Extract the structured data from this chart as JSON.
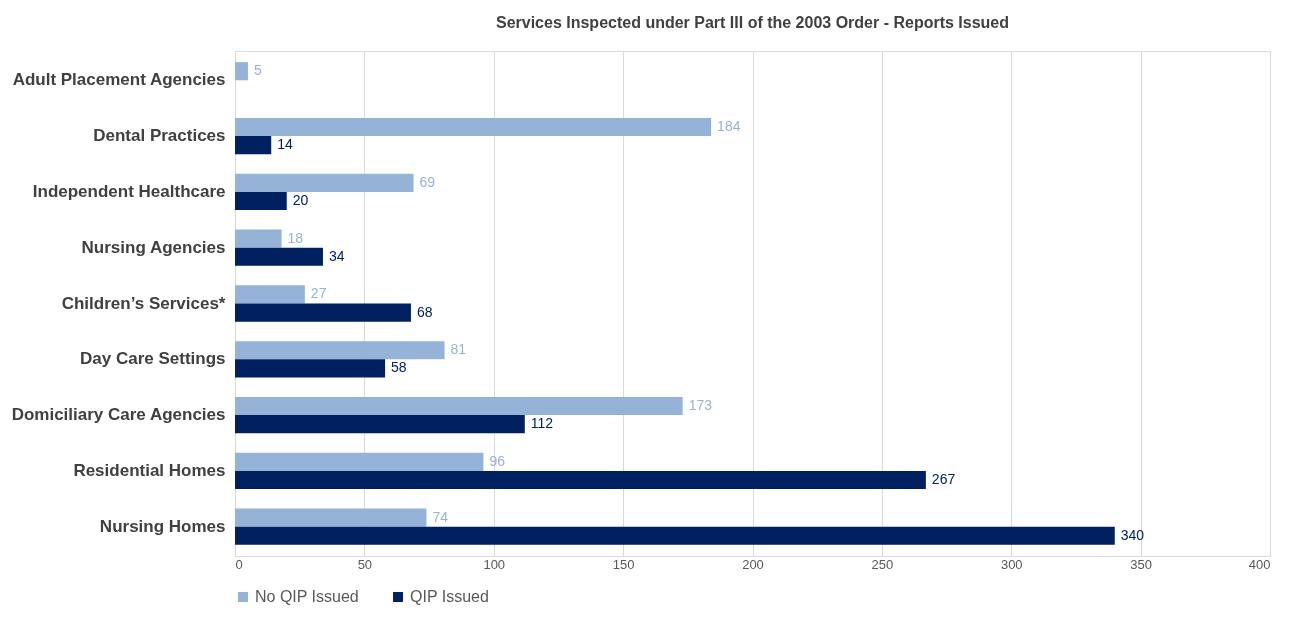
{
  "chart_data": {
    "type": "bar",
    "orientation": "horizontal",
    "title": "Services Inspected under Part III  of the 2003 Order - Reports Issued",
    "categories": [
      "Adult Placement Agencies",
      "Dental Practices",
      "Independent Healthcare",
      "Nursing Agencies",
      "Children’s Services*",
      "Day Care Settings",
      "Domiciliary Care Agencies",
      "Residential Homes",
      "Nursing Homes"
    ],
    "series": [
      {
        "name": "No QIP Issued",
        "color": "#95b3d7",
        "values": [
          5,
          184,
          69,
          18,
          27,
          81,
          173,
          96,
          74
        ]
      },
      {
        "name": "QIP Issued",
        "color": "#002060",
        "values": [
          null,
          14,
          20,
          34,
          68,
          58,
          112,
          267,
          340
        ]
      }
    ],
    "xlim": [
      0,
      400
    ],
    "xticks": [
      0,
      50,
      100,
      150,
      200,
      250,
      300,
      350,
      400
    ],
    "grid": "x",
    "legend": "bottom",
    "data_labels": true
  }
}
